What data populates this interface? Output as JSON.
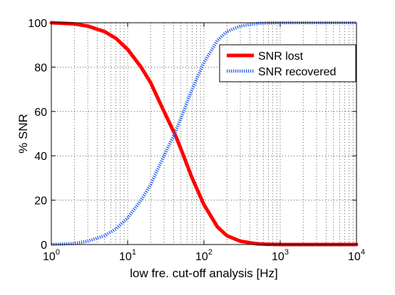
{
  "chart_data": {
    "type": "line",
    "xlabel": "low fre. cut-off analysis [Hz]",
    "ylabel": "% SNR",
    "xscale": "log",
    "xlim": [
      1,
      10000
    ],
    "ylim": [
      0,
      100
    ],
    "grid": true,
    "legend_position": "top-right",
    "x_ticks": [
      {
        "base": "10",
        "exp": "0"
      },
      {
        "base": "10",
        "exp": "1"
      },
      {
        "base": "10",
        "exp": "2"
      },
      {
        "base": "10",
        "exp": "3"
      },
      {
        "base": "10",
        "exp": "4"
      }
    ],
    "y_ticks": [
      "0",
      "20",
      "40",
      "60",
      "80",
      "100"
    ],
    "x": [
      1,
      2,
      3,
      5,
      7,
      10,
      15,
      20,
      30,
      40,
      45,
      50,
      70,
      100,
      150,
      200,
      300,
      500,
      700,
      1000,
      2000,
      5000,
      10000
    ],
    "series": [
      {
        "name": "SNR lost",
        "color": "#ff0000",
        "style": "solid",
        "values": [
          100,
          99.5,
          98.5,
          96,
          93,
          88,
          80,
          73,
          60,
          51,
          47,
          43,
          30,
          18,
          8,
          4,
          1.5,
          0.3,
          0.1,
          0,
          0,
          0,
          0
        ]
      },
      {
        "name": "SNR recovered",
        "color": "#3366ee",
        "style": "dotted",
        "values": [
          0,
          0.5,
          1.5,
          4,
          7,
          12,
          20,
          27,
          40,
          49,
          53,
          57,
          70,
          82,
          92,
          96,
          98.5,
          99.7,
          99.9,
          100,
          100,
          100,
          100
        ]
      }
    ]
  }
}
